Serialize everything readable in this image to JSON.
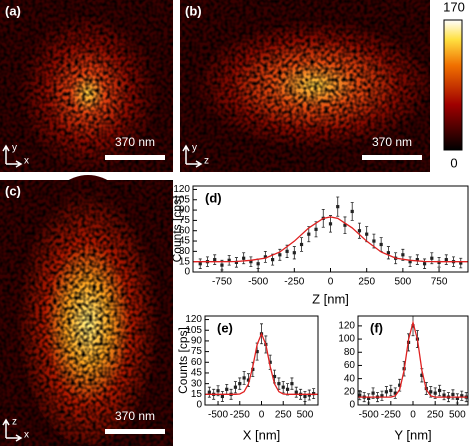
{
  "images": [
    {
      "label": "(a)",
      "scalebar": "370 nm",
      "axes": [
        "y",
        "x"
      ]
    },
    {
      "label": "(b)",
      "scalebar": "370 nm",
      "axes": [
        "y",
        "z"
      ]
    },
    {
      "label": "(c)",
      "scalebar": "370 nm",
      "axes": [
        "z",
        "x"
      ]
    }
  ],
  "colorbar": {
    "ticks": [
      170,
      0
    ]
  },
  "chart_data": [
    {
      "type": "scatter",
      "label": "(d)",
      "xlabel": "Z [nm]",
      "ylabel": "Counts [cps]",
      "xlim": [
        -950,
        950
      ],
      "ylim": [
        0,
        125
      ],
      "xticks": [
        -750,
        -500,
        -250,
        0,
        250,
        500,
        750
      ],
      "yticks": [
        0,
        15,
        30,
        45,
        60,
        75,
        90,
        105,
        120
      ],
      "series": [
        {
          "type": "scatter",
          "color": "#222222",
          "x": [
            -900,
            -850,
            -800,
            -750,
            -700,
            -650,
            -600,
            -550,
            -500,
            -450,
            -400,
            -350,
            -300,
            -250,
            -200,
            -150,
            -100,
            -50,
            0,
            50,
            100,
            150,
            200,
            250,
            300,
            350,
            400,
            450,
            500,
            550,
            600,
            650,
            700,
            750,
            800,
            850,
            900
          ],
          "values": [
            12,
            15,
            18,
            10,
            17,
            14,
            20,
            15,
            12,
            22,
            18,
            25,
            30,
            28,
            40,
            55,
            62,
            78,
            70,
            95,
            68,
            88,
            60,
            55,
            45,
            40,
            28,
            20,
            25,
            15,
            18,
            12,
            20,
            14,
            18,
            15,
            13
          ],
          "errors": [
            7,
            7,
            7,
            7,
            7,
            7,
            8,
            7,
            7,
            8,
            8,
            8,
            9,
            9,
            10,
            11,
            11,
            13,
            12,
            14,
            12,
            13,
            11,
            11,
            10,
            10,
            9,
            8,
            8,
            7,
            7,
            7,
            8,
            7,
            7,
            7,
            7
          ]
        },
        {
          "type": "line",
          "color": "#e02020",
          "x": [
            -950,
            -850,
            -750,
            -650,
            -550,
            -450,
            -350,
            -250,
            -150,
            -50,
            0,
            50,
            150,
            250,
            350,
            450,
            550,
            650,
            750,
            850,
            950
          ],
          "values": [
            15,
            15,
            15,
            15.3,
            17,
            20.2,
            29.1,
            44.8,
            64.1,
            78,
            80,
            78,
            64.1,
            44.8,
            29.1,
            20.2,
            17,
            15.3,
            15,
            15,
            15
          ]
        }
      ]
    },
    {
      "type": "scatter",
      "label": "(e)",
      "xlabel": "X [nm]",
      "ylabel": "Counts [cps]",
      "xlim": [
        -650,
        650
      ],
      "ylim": [
        0,
        125
      ],
      "xticks": [
        -500,
        -250,
        0,
        250,
        500
      ],
      "yticks": [
        0,
        15,
        30,
        45,
        60,
        75,
        90,
        105,
        120
      ],
      "series": [
        {
          "type": "scatter",
          "color": "#222222",
          "x": [
            -600,
            -550,
            -500,
            -450,
            -400,
            -350,
            -300,
            -250,
            -200,
            -150,
            -100,
            -50,
            0,
            50,
            100,
            150,
            200,
            250,
            300,
            350,
            400,
            450,
            500,
            550,
            600
          ],
          "values": [
            18,
            15,
            20,
            12,
            22,
            15,
            25,
            30,
            38,
            35,
            50,
            75,
            100,
            85,
            60,
            40,
            30,
            25,
            22,
            30,
            18,
            15,
            12,
            14,
            16
          ],
          "errors": [
            7,
            7,
            7,
            7,
            7,
            7,
            8,
            8,
            9,
            9,
            10,
            12,
            14,
            12,
            10,
            9,
            8,
            8,
            8,
            8,
            7,
            7,
            7,
            7,
            7
          ]
        },
        {
          "type": "line",
          "color": "#e02020",
          "x": [
            -650,
            -400,
            -300,
            -250,
            -200,
            -150,
            -100,
            -50,
            0,
            50,
            100,
            150,
            200,
            250,
            300,
            400,
            650
          ],
          "values": [
            15,
            15,
            15,
            15.5,
            18.7,
            29.6,
            54,
            85,
            100,
            85,
            54,
            29.6,
            18.7,
            15.5,
            15,
            15,
            15
          ]
        }
      ]
    },
    {
      "type": "scatter",
      "label": "(f)",
      "xlabel": "Y [nm]",
      "xlim": [
        -620,
        620
      ],
      "ylim": [
        0,
        135
      ],
      "xticks": [
        -500,
        -250,
        0,
        250,
        500
      ],
      "yticks": [
        0,
        20,
        40,
        60,
        80,
        100,
        120
      ],
      "series": [
        {
          "type": "scatter",
          "color": "#222222",
          "x": [
            -600,
            -550,
            -500,
            -450,
            -400,
            -350,
            -300,
            -250,
            -200,
            -150,
            -100,
            -50,
            0,
            50,
            100,
            150,
            200,
            250,
            300,
            350,
            400,
            450,
            500,
            550,
            600
          ],
          "values": [
            15,
            12,
            10,
            18,
            12,
            14,
            20,
            22,
            18,
            30,
            55,
            95,
            120,
            100,
            45,
            25,
            20,
            18,
            22,
            15,
            12,
            16,
            10,
            14,
            12
          ],
          "errors": [
            7,
            7,
            7,
            8,
            7,
            7,
            8,
            8,
            8,
            9,
            11,
            13,
            15,
            13,
            10,
            9,
            8,
            8,
            8,
            7,
            7,
            7,
            7,
            7,
            7
          ]
        },
        {
          "type": "line",
          "color": "#e02020",
          "x": [
            -620,
            -300,
            -250,
            -200,
            -150,
            -100,
            -50,
            0,
            50,
            100,
            150,
            200,
            250,
            300,
            620
          ],
          "values": [
            12,
            12,
            12,
            13.9,
            23.3,
            52.7,
            99.6,
            125,
            99.6,
            52.7,
            23.3,
            13.9,
            12,
            12,
            12
          ]
        }
      ]
    }
  ]
}
